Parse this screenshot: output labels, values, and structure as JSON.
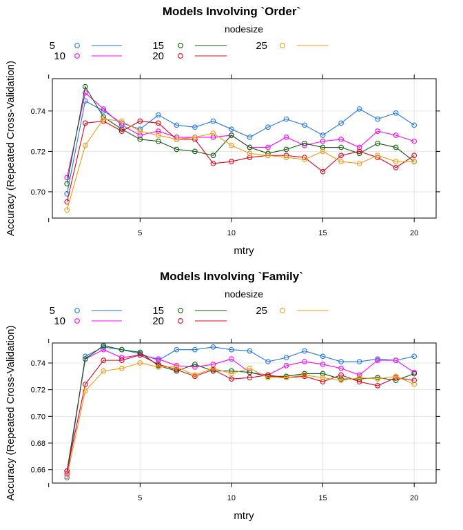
{
  "colors": {
    "5": "#1f77e8",
    "10": "#ff00ff",
    "15": "#0a5c0a",
    "20": "#e0001a",
    "25": "#f29a12"
  },
  "chart_data": [
    {
      "type": "line",
      "title": "Models Involving `Order`",
      "xlabel": "mtry",
      "ylabel": "Accuracy (Repeated Cross-Validation)",
      "legend_title": "nodesize",
      "legend_position": "top",
      "xlim": [
        0.2,
        21.2
      ],
      "ylim": [
        0.687,
        0.756
      ],
      "xticks": [
        5,
        10,
        15,
        20
      ],
      "yticks": [
        0.7,
        0.72,
        0.74
      ],
      "xtick_labels": [
        "5",
        "10",
        "15",
        "20"
      ],
      "ytick_labels": [
        "0.70",
        "0.72",
        "0.74"
      ],
      "grid": true,
      "x": [
        1,
        2,
        3,
        4,
        5,
        6,
        7,
        8,
        9,
        10,
        11,
        12,
        13,
        14,
        15,
        16,
        17,
        18,
        19,
        20
      ],
      "series": [
        {
          "name": "5",
          "values": [
            0.699,
            0.745,
            0.74,
            0.734,
            0.731,
            0.738,
            0.733,
            0.732,
            0.735,
            0.731,
            0.727,
            0.732,
            0.736,
            0.733,
            0.728,
            0.734,
            0.741,
            0.736,
            0.739,
            0.733
          ]
        },
        {
          "name": "10",
          "values": [
            0.707,
            0.749,
            0.741,
            0.733,
            0.728,
            0.73,
            0.727,
            0.727,
            0.727,
            0.728,
            0.722,
            0.722,
            0.727,
            0.723,
            0.725,
            0.726,
            0.722,
            0.73,
            0.728,
            0.725
          ]
        },
        {
          "name": "15",
          "values": [
            0.704,
            0.752,
            0.737,
            0.731,
            0.726,
            0.725,
            0.721,
            0.72,
            0.718,
            0.728,
            0.722,
            0.719,
            0.721,
            0.724,
            0.722,
            0.722,
            0.719,
            0.724,
            0.722,
            0.715
          ]
        },
        {
          "name": "20",
          "values": [
            0.695,
            0.734,
            0.735,
            0.73,
            0.735,
            0.734,
            0.726,
            0.726,
            0.714,
            0.715,
            0.717,
            0.718,
            0.718,
            0.717,
            0.71,
            0.718,
            0.72,
            0.717,
            0.712,
            0.718
          ]
        },
        {
          "name": "25",
          "values": [
            0.691,
            0.723,
            0.736,
            0.735,
            0.73,
            0.728,
            0.726,
            0.727,
            0.729,
            0.723,
            0.719,
            0.718,
            0.717,
            0.716,
            0.72,
            0.715,
            0.714,
            0.718,
            0.715,
            0.715
          ]
        }
      ]
    },
    {
      "type": "line",
      "title": "Models Involving `Family`",
      "xlabel": "mtry",
      "ylabel": "Accuracy (Repeated Cross-Validation)",
      "legend_title": "nodesize",
      "legend_position": "top",
      "xlim": [
        0.2,
        21.2
      ],
      "ylim": [
        0.65,
        0.755
      ],
      "xticks": [
        5,
        10,
        15,
        20
      ],
      "yticks": [
        0.66,
        0.68,
        0.7,
        0.72,
        0.74
      ],
      "xtick_labels": [
        "5",
        "10",
        "15",
        "20"
      ],
      "ytick_labels": [
        "0.66",
        "0.68",
        "0.70",
        "0.72",
        "0.74"
      ],
      "grid": true,
      "x": [
        1,
        2,
        3,
        4,
        5,
        6,
        7,
        8,
        9,
        10,
        11,
        12,
        13,
        14,
        15,
        16,
        17,
        18,
        19,
        20
      ],
      "series": [
        {
          "name": "5",
          "values": [
            0.654,
            0.745,
            0.752,
            0.75,
            0.747,
            0.742,
            0.75,
            0.75,
            0.752,
            0.75,
            0.749,
            0.741,
            0.744,
            0.749,
            0.745,
            0.741,
            0.741,
            0.743,
            0.742,
            0.745
          ]
        },
        {
          "name": "10",
          "values": [
            0.657,
            0.743,
            0.75,
            0.744,
            0.746,
            0.743,
            0.738,
            0.737,
            0.739,
            0.743,
            0.733,
            0.731,
            0.738,
            0.741,
            0.739,
            0.736,
            0.731,
            0.742,
            0.742,
            0.733
          ]
        },
        {
          "name": "15",
          "values": [
            0.659,
            0.743,
            0.753,
            0.75,
            0.748,
            0.738,
            0.734,
            0.739,
            0.734,
            0.734,
            0.733,
            0.73,
            0.73,
            0.732,
            0.732,
            0.728,
            0.728,
            0.729,
            0.727,
            0.732
          ]
        },
        {
          "name": "20",
          "values": [
            0.659,
            0.724,
            0.742,
            0.742,
            0.746,
            0.739,
            0.735,
            0.73,
            0.735,
            0.728,
            0.729,
            0.731,
            0.729,
            0.73,
            0.726,
            0.731,
            0.726,
            0.723,
            0.729,
            0.727
          ]
        },
        {
          "name": "25",
          "values": [
            0.655,
            0.719,
            0.734,
            0.736,
            0.74,
            0.737,
            0.737,
            0.731,
            0.736,
            0.732,
            0.736,
            0.729,
            0.729,
            0.731,
            0.729,
            0.727,
            0.729,
            0.728,
            0.73,
            0.724
          ]
        }
      ]
    }
  ]
}
